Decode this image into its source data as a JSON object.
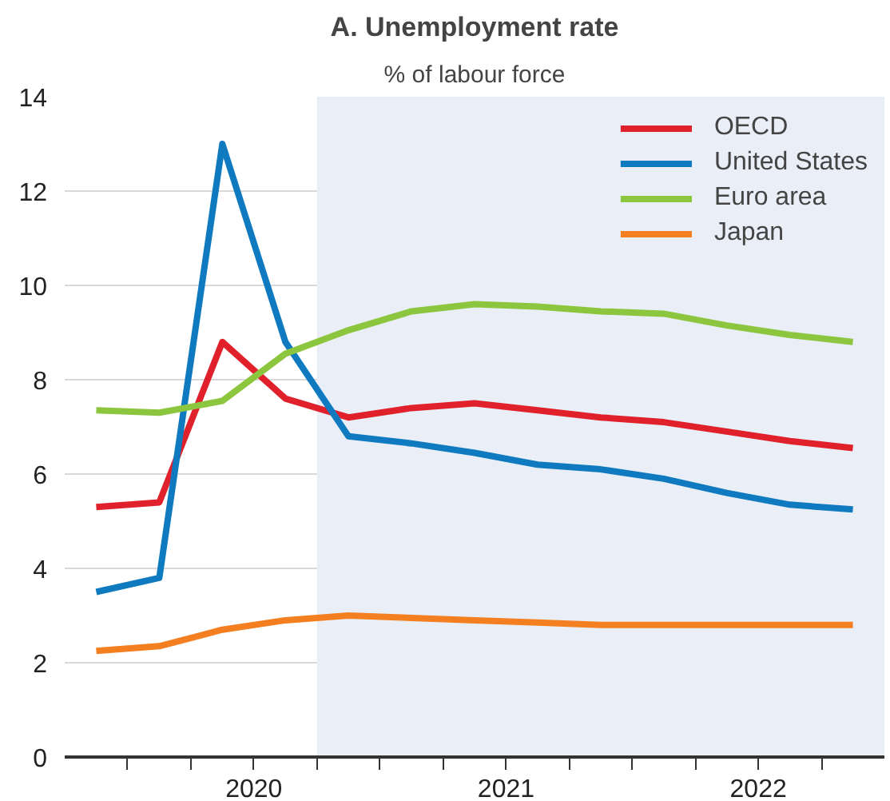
{
  "chart_data": {
    "type": "line",
    "title": "A. Unemployment rate",
    "subtitle": "% of labour force",
    "x": [
      2019.875,
      2020.125,
      2020.375,
      2020.625,
      2020.875,
      2021.125,
      2021.375,
      2021.625,
      2021.875,
      2022.125,
      2022.375,
      2022.625,
      2022.875
    ],
    "series": [
      {
        "name": "OECD",
        "color": "#e0202b",
        "values": [
          5.3,
          5.4,
          8.8,
          7.6,
          7.2,
          7.4,
          7.5,
          7.35,
          7.2,
          7.1,
          6.9,
          6.7,
          6.55
        ]
      },
      {
        "name": "United States",
        "color": "#0f7ac0",
        "values": [
          3.5,
          3.8,
          13.0,
          8.8,
          6.8,
          6.65,
          6.45,
          6.2,
          6.1,
          5.9,
          5.6,
          5.35,
          5.25
        ]
      },
      {
        "name": "Euro area",
        "color": "#8cc63f",
        "values": [
          7.35,
          7.3,
          7.55,
          8.55,
          9.05,
          9.45,
          9.6,
          9.55,
          9.45,
          9.4,
          9.15,
          8.95,
          8.8
        ]
      },
      {
        "name": "Japan",
        "color": "#f47f20",
        "values": [
          2.25,
          2.35,
          2.7,
          2.9,
          3.0,
          2.95,
          2.9,
          2.85,
          2.8,
          2.8,
          2.8,
          2.8,
          2.8
        ]
      }
    ],
    "xlim": [
      2019.75,
      2023.0
    ],
    "xticks": [
      {
        "value": 2020,
        "label": null
      },
      {
        "value": 2020.25,
        "label": null
      },
      {
        "value": 2020.5,
        "label": "2020"
      },
      {
        "value": 2020.75,
        "label": null
      },
      {
        "value": 2021,
        "label": null
      },
      {
        "value": 2021.25,
        "label": null
      },
      {
        "value": 2021.5,
        "label": "2021"
      },
      {
        "value": 2021.75,
        "label": null
      },
      {
        "value": 2022,
        "label": null
      },
      {
        "value": 2022.25,
        "label": null
      },
      {
        "value": 2022.5,
        "label": "2022"
      },
      {
        "value": 2022.75,
        "label": null
      }
    ],
    "ylim": [
      0,
      14
    ],
    "yticks": [
      0,
      2,
      4,
      6,
      8,
      10,
      12,
      14
    ],
    "bands": [
      {
        "axis": "x",
        "from": 2020.75,
        "to": 2023.0,
        "label": null,
        "color": "#eaeef6"
      }
    ],
    "grid": "y",
    "legend": "top right",
    "line_style": "solid",
    "marker": "none"
  }
}
